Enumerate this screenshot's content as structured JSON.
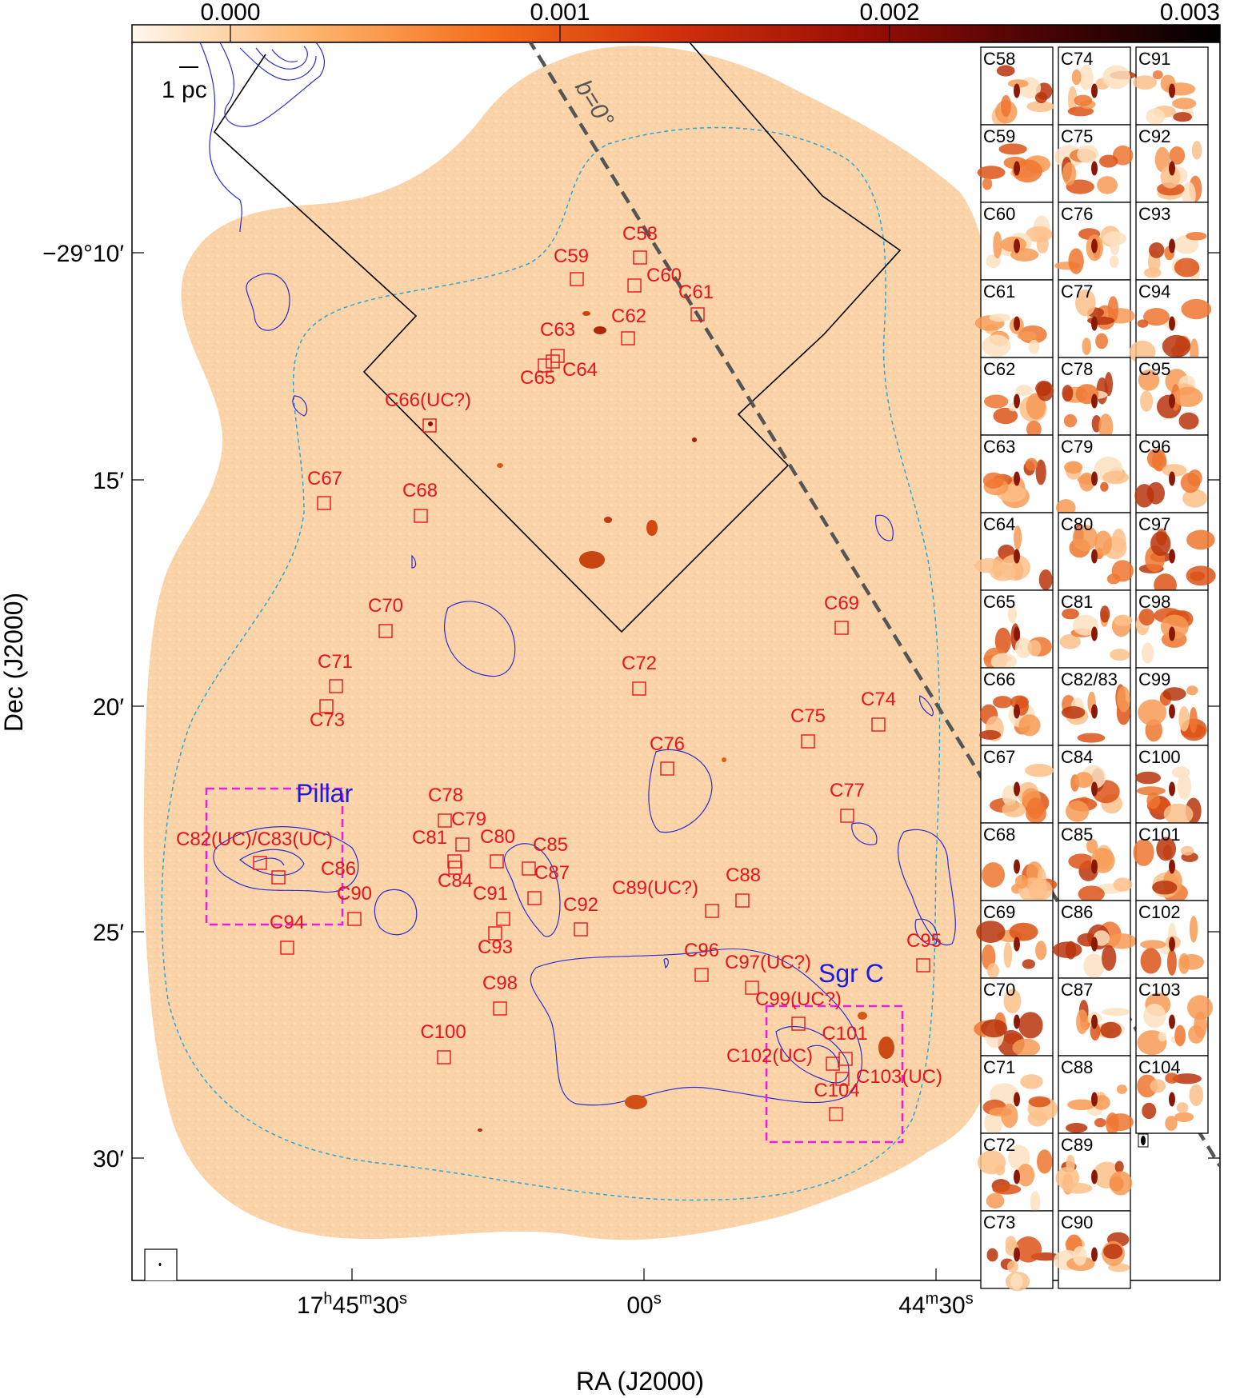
{
  "colorbar": {
    "ticks": [
      "0.000",
      "0.001",
      "0.002",
      "0.003"
    ],
    "colors": [
      "#fff7ec",
      "#fdb36b",
      "#f46d1a",
      "#d0300c",
      "#9a0e06",
      "#4a0404",
      "#000000"
    ]
  },
  "axes": {
    "xlabel": "RA (J2000)",
    "ylabel": "Dec (J2000)",
    "xticks": [
      {
        "hms": "17",
        "h": "h",
        "mm": "45",
        "m": "m",
        "ss": "30",
        "s": "s"
      },
      {
        "hms": "",
        "h": "",
        "mm": "",
        "m": "",
        "ss": "00",
        "s": "s"
      },
      {
        "hms": "",
        "h": "",
        "mm": "44",
        "m": "m",
        "ss": "30",
        "s": "s"
      }
    ],
    "yticks": [
      "−29°10′",
      "15′",
      "20′",
      "25′",
      "30′"
    ]
  },
  "scale_bar": "1 pc",
  "galactic_plane_label": "b=0°",
  "regions": {
    "pillar": "Pillar",
    "sgrc": "Sgr C"
  },
  "sources": [
    {
      "id": "C58",
      "label": "C58"
    },
    {
      "id": "C59",
      "label": "C59"
    },
    {
      "id": "C60",
      "label": "C60"
    },
    {
      "id": "C61",
      "label": "C61"
    },
    {
      "id": "C62",
      "label": "C62"
    },
    {
      "id": "C63",
      "label": "C63"
    },
    {
      "id": "C64",
      "label": "C64"
    },
    {
      "id": "C65",
      "label": "C65"
    },
    {
      "id": "C66",
      "label": "C66(UC?)"
    },
    {
      "id": "C67",
      "label": "C67"
    },
    {
      "id": "C68",
      "label": "C68"
    },
    {
      "id": "C69",
      "label": "C69"
    },
    {
      "id": "C70",
      "label": "C70"
    },
    {
      "id": "C71",
      "label": "C71"
    },
    {
      "id": "C72",
      "label": "C72"
    },
    {
      "id": "C73",
      "label": "C73"
    },
    {
      "id": "C74",
      "label": "C74"
    },
    {
      "id": "C75",
      "label": "C75"
    },
    {
      "id": "C76",
      "label": "C76"
    },
    {
      "id": "C77",
      "label": "C77"
    },
    {
      "id": "C78",
      "label": "C78"
    },
    {
      "id": "C79",
      "label": "C79"
    },
    {
      "id": "C80",
      "label": "C80"
    },
    {
      "id": "C81",
      "label": "C81"
    },
    {
      "id": "C82",
      "label": "C82(UC)/C83(UC)"
    },
    {
      "id": "C84",
      "label": "C84"
    },
    {
      "id": "C85",
      "label": "C85"
    },
    {
      "id": "C86",
      "label": "C86"
    },
    {
      "id": "C87",
      "label": "C87"
    },
    {
      "id": "C88",
      "label": "C88"
    },
    {
      "id": "C89",
      "label": "C89(UC?)"
    },
    {
      "id": "C90",
      "label": "C90"
    },
    {
      "id": "C91",
      "label": "C91"
    },
    {
      "id": "C92",
      "label": "C92"
    },
    {
      "id": "C93",
      "label": "C93"
    },
    {
      "id": "C94",
      "label": "C94"
    },
    {
      "id": "C95",
      "label": "C95"
    },
    {
      "id": "C96",
      "label": "C96"
    },
    {
      "id": "C97",
      "label": "C97(UC?)"
    },
    {
      "id": "C98",
      "label": "C98"
    },
    {
      "id": "C99",
      "label": "C99(UC?)"
    },
    {
      "id": "C100",
      "label": "C100"
    },
    {
      "id": "C101",
      "label": "C101"
    },
    {
      "id": "C102",
      "label": "C102(UC)"
    },
    {
      "id": "C103",
      "label": "C103(UC)"
    },
    {
      "id": "C104",
      "label": "C104"
    }
  ],
  "cutouts": {
    "col1": [
      "C58",
      "C59",
      "C60",
      "C61",
      "C62",
      "C63",
      "C64",
      "C65",
      "C66",
      "C67",
      "C68",
      "C69",
      "C70",
      "C71",
      "C72",
      "C73"
    ],
    "col2": [
      "C74",
      "C75",
      "C76",
      "C77",
      "C78",
      "C79",
      "C80",
      "C81",
      "C82/83",
      "C84",
      "C85",
      "C86",
      "C87",
      "C88",
      "C89",
      "C90"
    ],
    "col3": [
      "C91",
      "C92",
      "C93",
      "C94",
      "C95",
      "C96",
      "C97",
      "C98",
      "C99",
      "C100",
      "C101",
      "C102",
      "C103",
      "C104"
    ]
  }
}
